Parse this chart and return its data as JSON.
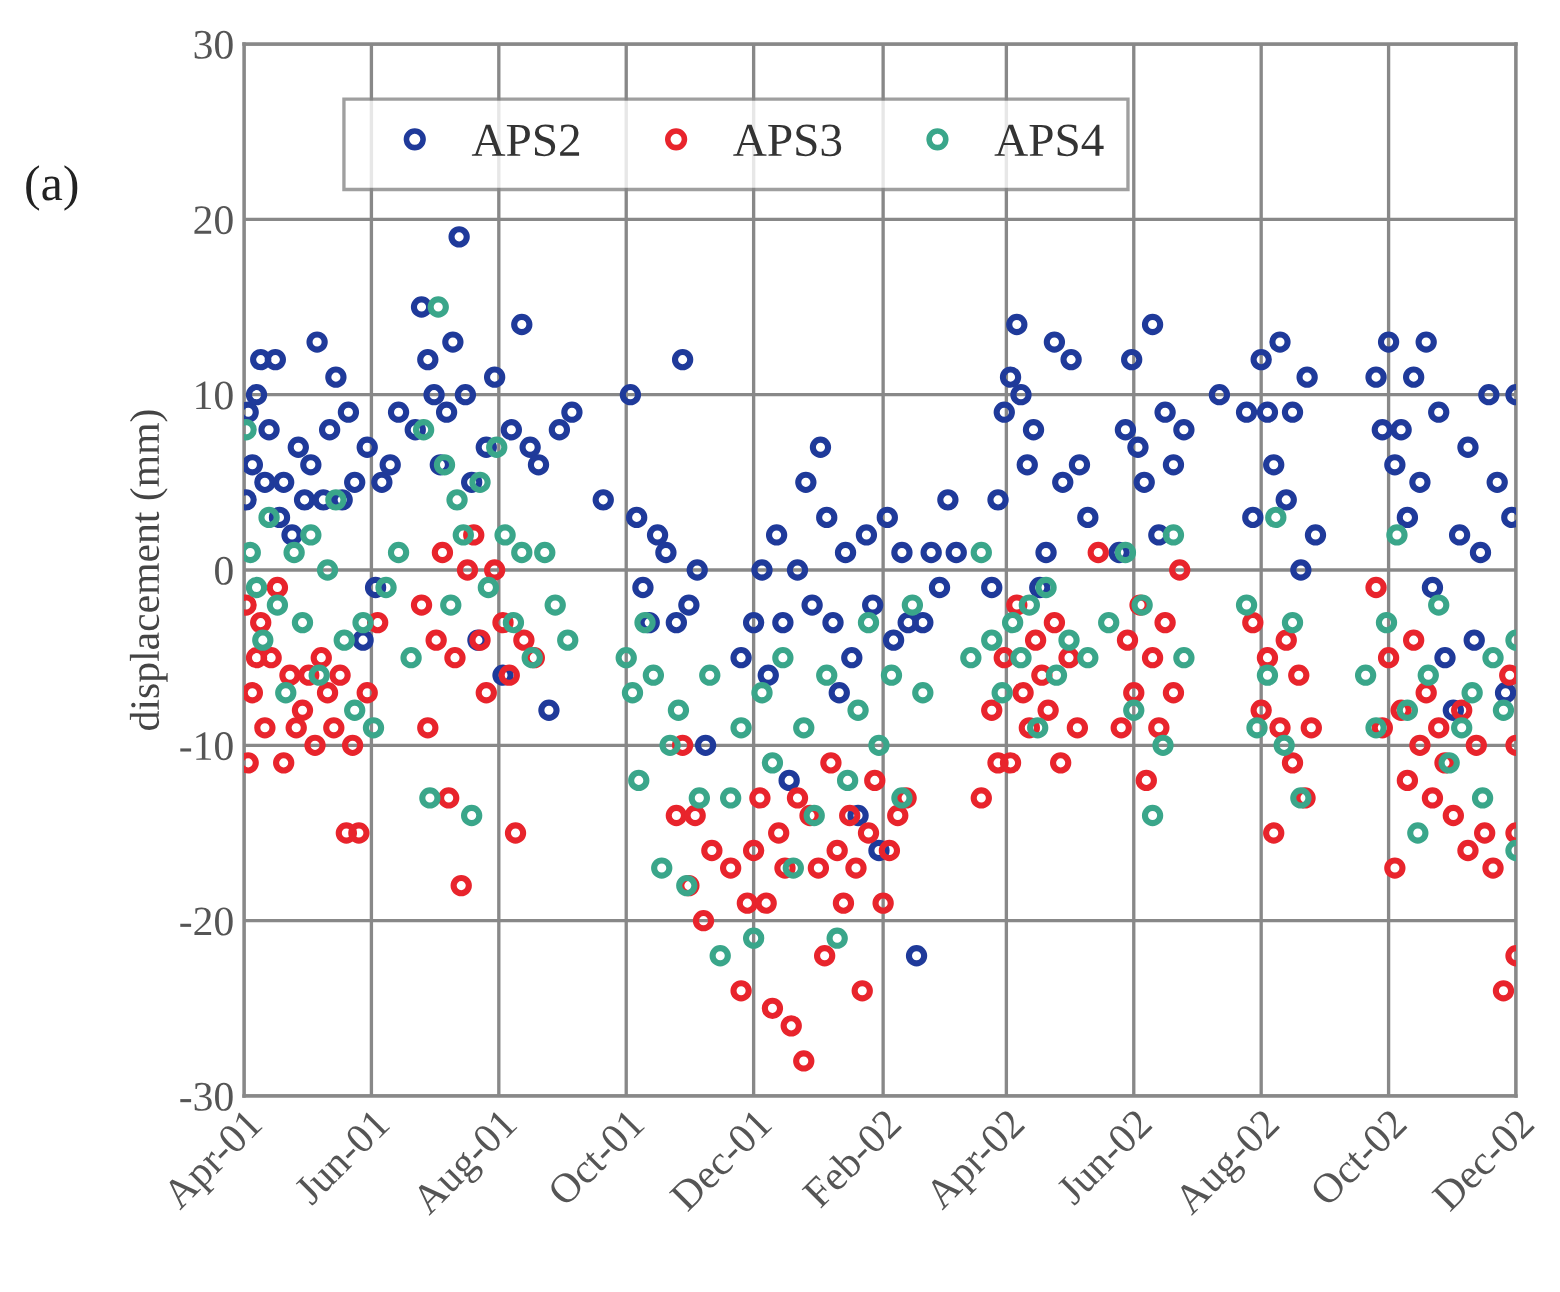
{
  "chart_data": {
    "type": "scatter",
    "ylabel": "displacement (mm)",
    "annotations": [
      "(a)"
    ],
    "marker": "circle",
    "legend": "top left",
    "grid": true,
    "xlim": [
      "2001-04-01",
      "2002-12-01"
    ],
    "ylim": [
      -30,
      30
    ],
    "yticks": [
      -30,
      -20,
      -10,
      0,
      10,
      20,
      30
    ],
    "xticks": [
      {
        "value": "2001-04-01",
        "label": "Apr-01"
      },
      {
        "value": "2001-06-01",
        "label": "Jun-01"
      },
      {
        "value": "2001-08-01",
        "label": "Aug-01"
      },
      {
        "value": "2001-10-01",
        "label": "Oct-01"
      },
      {
        "value": "2001-12-01",
        "label": "Dec-01"
      },
      {
        "value": "2002-02-01",
        "label": "Feb-02"
      },
      {
        "value": "2002-04-01",
        "label": "Apr-02"
      },
      {
        "value": "2002-06-01",
        "label": "Jun-02"
      },
      {
        "value": "2002-08-01",
        "label": "Aug-02"
      },
      {
        "value": "2002-10-01",
        "label": "Oct-02"
      },
      {
        "value": "2002-12-01",
        "label": "Dec-02"
      }
    ],
    "series": [
      {
        "name": "APS2",
        "color": "#1f3a9a",
        "x": [
          "2001-04-02",
          "2001-04-03",
          "2001-04-05",
          "2001-04-07",
          "2001-04-09",
          "2001-04-11",
          "2001-04-13",
          "2001-04-16",
          "2001-04-18",
          "2001-04-20",
          "2001-04-24",
          "2001-04-27",
          "2001-04-30",
          "2001-05-03",
          "2001-05-06",
          "2001-05-09",
          "2001-05-12",
          "2001-05-15",
          "2001-05-18",
          "2001-05-21",
          "2001-05-24",
          "2001-05-28",
          "2001-05-30",
          "2001-06-03",
          "2001-06-06",
          "2001-06-10",
          "2001-06-14",
          "2001-06-22",
          "2001-06-25",
          "2001-06-28",
          "2001-07-01",
          "2001-07-04",
          "2001-07-07",
          "2001-07-10",
          "2001-07-13",
          "2001-07-16",
          "2001-07-19",
          "2001-07-22",
          "2001-07-26",
          "2001-07-30",
          "2001-08-03",
          "2001-08-07",
          "2001-08-12",
          "2001-08-16",
          "2001-08-20",
          "2001-08-25",
          "2001-08-30",
          "2001-09-05",
          "2001-09-20",
          "2001-10-03",
          "2001-10-06",
          "2001-10-09",
          "2001-10-12",
          "2001-10-16",
          "2001-10-20",
          "2001-10-25",
          "2001-10-28",
          "2001-10-31",
          "2001-11-04",
          "2001-11-08",
          "2001-11-25",
          "2001-12-01",
          "2001-12-05",
          "2001-12-08",
          "2001-12-12",
          "2001-12-15",
          "2001-12-18",
          "2001-12-22",
          "2001-12-26",
          "2001-12-29",
          "2002-01-02",
          "2002-01-05",
          "2002-01-08",
          "2002-01-11",
          "2002-01-14",
          "2002-01-17",
          "2002-01-20",
          "2002-01-24",
          "2002-01-27",
          "2002-01-30",
          "2002-02-03",
          "2002-02-06",
          "2002-02-10",
          "2002-02-13",
          "2002-02-17",
          "2002-02-20",
          "2002-02-24",
          "2002-02-28",
          "2002-03-04",
          "2002-03-08",
          "2002-03-25",
          "2002-03-28",
          "2002-03-31",
          "2002-04-03",
          "2002-04-06",
          "2002-04-08",
          "2002-04-11",
          "2002-04-14",
          "2002-04-17",
          "2002-04-20",
          "2002-04-24",
          "2002-04-28",
          "2002-05-02",
          "2002-05-06",
          "2002-05-10",
          "2002-05-25",
          "2002-05-28",
          "2002-05-31",
          "2002-06-03",
          "2002-06-06",
          "2002-06-10",
          "2002-06-13",
          "2002-06-16",
          "2002-06-20",
          "2002-06-25",
          "2002-07-12",
          "2002-07-25",
          "2002-07-28",
          "2002-08-01",
          "2002-08-04",
          "2002-08-07",
          "2002-08-10",
          "2002-08-13",
          "2002-08-16",
          "2002-08-20",
          "2002-08-23",
          "2002-08-27",
          "2002-09-25",
          "2002-09-28",
          "2002-10-01",
          "2002-10-04",
          "2002-10-07",
          "2002-10-10",
          "2002-10-13",
          "2002-10-16",
          "2002-10-19",
          "2002-10-22",
          "2002-10-25",
          "2002-10-28",
          "2002-11-01",
          "2002-11-04",
          "2002-11-08",
          "2002-11-11",
          "2002-11-14",
          "2002-11-18",
          "2002-11-22",
          "2002-11-26",
          "2002-11-29",
          "2002-12-01"
        ],
        "values": [
          4,
          9,
          6,
          10,
          12,
          5,
          8,
          12,
          3,
          5,
          2,
          7,
          4,
          6,
          13,
          4,
          8,
          11,
          4,
          9,
          5,
          -4,
          7,
          -1,
          5,
          6,
          9,
          8,
          15,
          12,
          10,
          6,
          9,
          13,
          19,
          10,
          5,
          -4,
          7,
          11,
          -6,
          8,
          14,
          7,
          6,
          -8,
          8,
          9,
          4,
          10,
          3,
          -1,
          -3,
          2,
          1,
          -3,
          12,
          -2,
          0,
          -10,
          -5,
          -3,
          0,
          -6,
          2,
          -3,
          -12,
          0,
          5,
          -2,
          7,
          3,
          -3,
          -7,
          1,
          -5,
          -14,
          2,
          -2,
          -16,
          3,
          -4,
          1,
          -3,
          -22,
          -3,
          1,
          -1,
          4,
          1,
          -1,
          4,
          9,
          11,
          14,
          10,
          6,
          8,
          -1,
          1,
          13,
          5,
          12,
          6,
          3,
          1,
          8,
          12,
          7,
          5,
          14,
          2,
          9,
          6,
          8,
          10,
          9,
          3,
          12,
          9,
          6,
          13,
          4,
          9,
          0,
          11,
          2,
          11,
          8,
          13,
          6,
          8,
          3,
          11,
          5,
          13,
          -1,
          9,
          -5,
          -8,
          2,
          7,
          -4,
          1,
          10,
          5,
          -7,
          3,
          10
        ]
      },
      {
        "name": "APS3",
        "color": "#e8242c",
        "x": [
          "2001-04-02",
          "2001-04-03",
          "2001-04-05",
          "2001-04-07",
          "2001-04-09",
          "2001-04-11",
          "2001-04-14",
          "2001-04-17",
          "2001-04-20",
          "2001-04-23",
          "2001-04-26",
          "2001-04-29",
          "2001-05-02",
          "2001-05-05",
          "2001-05-08",
          "2001-05-11",
          "2001-05-14",
          "2001-05-17",
          "2001-05-20",
          "2001-05-23",
          "2001-05-26",
          "2001-05-30",
          "2001-06-04",
          "2001-06-25",
          "2001-06-28",
          "2001-07-02",
          "2001-07-05",
          "2001-07-08",
          "2001-07-11",
          "2001-07-14",
          "2001-07-17",
          "2001-07-20",
          "2001-07-23",
          "2001-07-26",
          "2001-07-30",
          "2001-08-03",
          "2001-08-06",
          "2001-08-09",
          "2001-08-13",
          "2001-08-18",
          "2001-10-25",
          "2001-10-28",
          "2001-10-31",
          "2001-11-03",
          "2001-11-07",
          "2001-11-11",
          "2001-11-20",
          "2001-11-25",
          "2001-11-28",
          "2001-12-01",
          "2001-12-04",
          "2001-12-07",
          "2001-12-10",
          "2001-12-13",
          "2001-12-16",
          "2001-12-19",
          "2001-12-22",
          "2001-12-25",
          "2001-12-28",
          "2002-01-01",
          "2002-01-04",
          "2002-01-07",
          "2002-01-10",
          "2002-01-13",
          "2002-01-16",
          "2002-01-19",
          "2002-01-22",
          "2002-01-25",
          "2002-01-28",
          "2002-02-01",
          "2002-02-04",
          "2002-02-08",
          "2002-02-12",
          "2002-03-20",
          "2002-03-25",
          "2002-03-28",
          "2002-03-31",
          "2002-04-03",
          "2002-04-06",
          "2002-04-09",
          "2002-04-12",
          "2002-04-15",
          "2002-04-18",
          "2002-04-21",
          "2002-04-24",
          "2002-04-27",
          "2002-05-01",
          "2002-05-05",
          "2002-05-15",
          "2002-05-26",
          "2002-05-29",
          "2002-06-01",
          "2002-06-04",
          "2002-06-07",
          "2002-06-10",
          "2002-06-13",
          "2002-06-16",
          "2002-06-20",
          "2002-06-23",
          "2002-07-28",
          "2002-08-01",
          "2002-08-04",
          "2002-08-07",
          "2002-08-10",
          "2002-08-13",
          "2002-08-16",
          "2002-08-19",
          "2002-08-22",
          "2002-08-25",
          "2002-09-25",
          "2002-09-28",
          "2002-10-01",
          "2002-10-04",
          "2002-10-07",
          "2002-10-10",
          "2002-10-13",
          "2002-10-16",
          "2002-10-19",
          "2002-10-22",
          "2002-10-25",
          "2002-10-28",
          "2002-11-01",
          "2002-11-05",
          "2002-11-08",
          "2002-11-12",
          "2002-11-16",
          "2002-11-20",
          "2002-11-25",
          "2002-11-28",
          "2002-12-01",
          "2002-12-01",
          "2002-12-01"
        ],
        "values": [
          -2,
          -11,
          -7,
          -5,
          -3,
          -9,
          -5,
          -1,
          -11,
          -6,
          -9,
          -8,
          -6,
          -10,
          -5,
          -7,
          -9,
          -6,
          -15,
          -10,
          -15,
          -7,
          -3,
          -2,
          -9,
          -4,
          1,
          -13,
          -5,
          -18,
          0,
          2,
          -4,
          -7,
          0,
          -3,
          -6,
          -15,
          -4,
          -5,
          -14,
          -10,
          -18,
          -14,
          -20,
          -16,
          -17,
          -24,
          -19,
          -16,
          -13,
          -19,
          -25,
          -15,
          -17,
          -26,
          -13,
          -28,
          -14,
          -17,
          -22,
          -11,
          -16,
          -19,
          -14,
          -17,
          -24,
          -15,
          -12,
          -19,
          -16,
          -14,
          -13,
          -13,
          -8,
          -11,
          -5,
          -11,
          -2,
          -7,
          -9,
          -4,
          -6,
          -8,
          -3,
          -11,
          -5,
          -9,
          1,
          -9,
          -4,
          -7,
          -2,
          -12,
          -5,
          -9,
          -3,
          -7,
          0,
          -3,
          -8,
          -5,
          -15,
          -9,
          -4,
          -11,
          -6,
          -13,
          -9,
          -1,
          -9,
          -5,
          -17,
          -8,
          -12,
          -4,
          -10,
          -7,
          -13,
          -9,
          -11,
          -14,
          -8,
          -16,
          -10,
          -15,
          -17,
          -24,
          -6,
          -10,
          -15,
          -22
        ]
      },
      {
        "name": "APS4",
        "color": "#3aa68a",
        "x": [
          "2001-04-02",
          "2001-04-04",
          "2001-04-07",
          "2001-04-10",
          "2001-04-13",
          "2001-04-17",
          "2001-04-21",
          "2001-04-25",
          "2001-04-29",
          "2001-05-03",
          "2001-05-07",
          "2001-05-11",
          "2001-05-15",
          "2001-05-19",
          "2001-05-24",
          "2001-05-28",
          "2001-06-02",
          "2001-06-08",
          "2001-06-14",
          "2001-06-20",
          "2001-06-26",
          "2001-06-29",
          "2001-07-03",
          "2001-07-06",
          "2001-07-09",
          "2001-07-12",
          "2001-07-15",
          "2001-07-19",
          "2001-07-23",
          "2001-07-27",
          "2001-07-31",
          "2001-08-04",
          "2001-08-08",
          "2001-08-12",
          "2001-08-17",
          "2001-08-23",
          "2001-08-28",
          "2001-09-03",
          "2001-10-01",
          "2001-10-04",
          "2001-10-07",
          "2001-10-10",
          "2001-10-14",
          "2001-10-18",
          "2001-10-22",
          "2001-10-26",
          "2001-10-30",
          "2001-11-05",
          "2001-11-10",
          "2001-11-15",
          "2001-11-20",
          "2001-11-25",
          "2001-12-01",
          "2001-12-05",
          "2001-12-10",
          "2001-12-15",
          "2001-12-20",
          "2001-12-25",
          "2001-12-30",
          "2002-01-05",
          "2002-01-10",
          "2002-01-15",
          "2002-01-20",
          "2002-01-25",
          "2002-01-30",
          "2002-02-05",
          "2002-02-10",
          "2002-02-15",
          "2002-02-20",
          "2002-03-15",
          "2002-03-20",
          "2002-03-25",
          "2002-03-30",
          "2002-04-04",
          "2002-04-08",
          "2002-04-12",
          "2002-04-16",
          "2002-04-20",
          "2002-04-25",
          "2002-05-01",
          "2002-05-10",
          "2002-05-20",
          "2002-05-28",
          "2002-06-01",
          "2002-06-05",
          "2002-06-10",
          "2002-06-15",
          "2002-06-20",
          "2002-06-25",
          "2002-07-25",
          "2002-07-30",
          "2002-08-04",
          "2002-08-08",
          "2002-08-12",
          "2002-08-16",
          "2002-08-20",
          "2002-09-20",
          "2002-09-25",
          "2002-09-30",
          "2002-10-05",
          "2002-10-10",
          "2002-10-15",
          "2002-10-20",
          "2002-10-25",
          "2002-10-30",
          "2002-11-05",
          "2002-11-10",
          "2002-11-15",
          "2002-11-20",
          "2002-11-25",
          "2002-12-01",
          "2002-12-01"
        ],
        "values": [
          8,
          1,
          -1,
          -4,
          3,
          -2,
          -7,
          1,
          -3,
          2,
          -6,
          0,
          4,
          -4,
          -8,
          -3,
          -9,
          -1,
          1,
          -5,
          8,
          -13,
          15,
          6,
          -2,
          4,
          2,
          -14,
          5,
          -1,
          7,
          2,
          -3,
          1,
          -5,
          1,
          -2,
          -4,
          -5,
          -7,
          -12,
          -3,
          -6,
          -17,
          -10,
          -8,
          -18,
          -13,
          -6,
          -22,
          -13,
          -9,
          -21,
          -7,
          -11,
          -5,
          -17,
          -9,
          -14,
          -6,
          -21,
          -12,
          -8,
          -3,
          -10,
          -6,
          -13,
          -2,
          -7,
          -5,
          1,
          -4,
          -7,
          -3,
          -5,
          -2,
          -9,
          -1,
          -6,
          -4,
          -5,
          -3,
          1,
          -8,
          -2,
          -14,
          -10,
          2,
          -5,
          -2,
          -9,
          -6,
          3,
          -10,
          -3,
          -13,
          -6,
          -9,
          -3,
          2,
          -8,
          -15,
          -6,
          -2,
          -11,
          -9,
          -7,
          -13,
          -5,
          -8,
          -16,
          -4
        ]
      }
    ]
  }
}
